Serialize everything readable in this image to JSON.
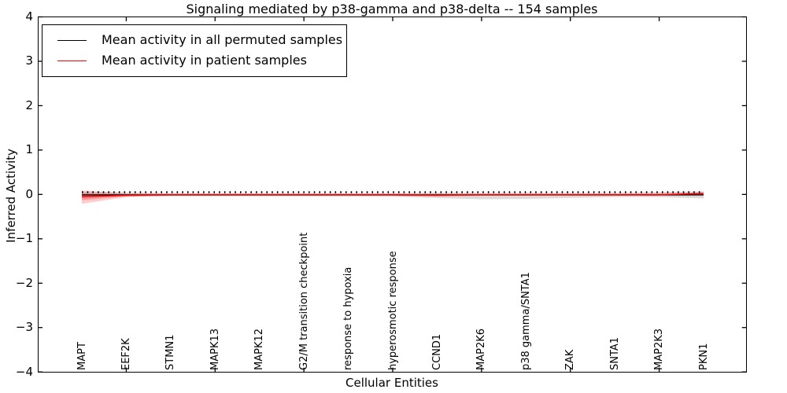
{
  "figure": {
    "title": "Signaling mediated by p38-gamma and p38-delta -- 154 samples",
    "xlabel": "Cellular Entities",
    "ylabel": "Inferred Activity"
  },
  "legend": {
    "position": "upper left",
    "items": [
      {
        "label": "Mean activity in all permuted samples",
        "color": "#000000"
      },
      {
        "label": "Mean activity in patient samples",
        "color": "#ff0000"
      }
    ]
  },
  "chart_data": {
    "type": "line",
    "title": "Signaling mediated by p38-gamma and p38-delta -- 154 samples",
    "xlabel": "Cellular Entities",
    "ylabel": "Inferred Activity",
    "ylim": [
      -4,
      4
    ],
    "yticks": [
      -4,
      -3,
      -2,
      -1,
      0,
      1,
      2,
      3,
      4
    ],
    "ytick_labels": [
      "−4",
      "−3",
      "−2",
      "−1",
      "0",
      "1",
      "2",
      "3",
      "4"
    ],
    "grid": false,
    "legend_position": "upper left",
    "categories": [
      "MAPT",
      "EEF2K",
      "STMN1",
      "MAPK13",
      "MAPK12",
      "G2/M transition checkpoint",
      "response to hypoxia",
      "hyperosmotic response",
      "CCND1",
      "MAP2K6",
      "p38 gamma/SNTA1",
      "ZAK",
      "SNTA1",
      "MAP2K3",
      "PKN1"
    ],
    "series": [
      {
        "name": "Mean activity in all permuted samples",
        "color": "#000000",
        "style": "solid",
        "values": [
          -0.01,
          -0.01,
          -0.01,
          -0.01,
          -0.01,
          -0.01,
          -0.01,
          -0.01,
          -0.01,
          -0.01,
          -0.01,
          -0.01,
          -0.01,
          -0.01,
          -0.01
        ],
        "band_upper": [
          0.06,
          0.04,
          0.03,
          0.03,
          0.03,
          0.03,
          0.03,
          0.03,
          0.04,
          0.04,
          0.04,
          0.04,
          0.04,
          0.05,
          0.07
        ],
        "band_lower": [
          -0.08,
          -0.05,
          -0.04,
          -0.04,
          -0.04,
          -0.04,
          -0.05,
          -0.05,
          -0.08,
          -0.11,
          -0.1,
          -0.08,
          -0.06,
          -0.06,
          -0.09
        ],
        "band_color": "#999999",
        "band_opacity": 0.35
      },
      {
        "name": "Mean activity in patient samples",
        "color": "#ff0000",
        "style": "solid",
        "inner_band": true,
        "values": [
          -0.05,
          -0.02,
          -0.01,
          -0.01,
          -0.01,
          -0.01,
          -0.01,
          -0.01,
          -0.02,
          -0.01,
          -0.01,
          -0.01,
          -0.01,
          -0.01,
          0.02
        ],
        "band_upper": [
          0.09,
          0.03,
          0.02,
          0.02,
          0.02,
          0.02,
          0.02,
          0.02,
          0.02,
          0.02,
          0.02,
          0.02,
          0.02,
          0.03,
          0.05
        ],
        "band_lower": [
          -0.21,
          -0.06,
          -0.03,
          -0.03,
          -0.03,
          -0.03,
          -0.03,
          -0.03,
          -0.05,
          -0.03,
          -0.03,
          -0.03,
          -0.03,
          -0.03,
          -0.01
        ],
        "band_color": "#ff0000",
        "band_opacity": 0.2
      },
      {
        "name": "permuted samples tick markers",
        "color": "#000000",
        "style": "dotted",
        "values": [
          0.05,
          0.05,
          0.05,
          0.05,
          0.05,
          0.05,
          0.05,
          0.05,
          0.05,
          0.05,
          0.05,
          0.05,
          0.05,
          0.05,
          0.05
        ]
      }
    ]
  }
}
